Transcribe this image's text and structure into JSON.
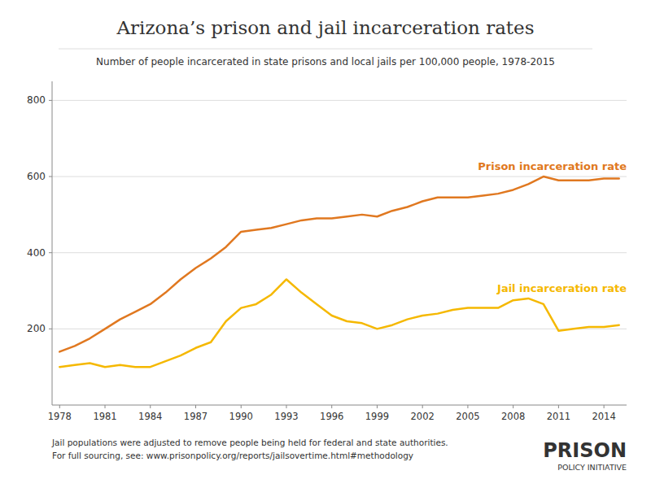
{
  "chart_data": {
    "type": "line",
    "title": "Arizona’s prison and jail incarceration rates",
    "subtitle": "Number of people incarcerated in state prisons and local jails per 100,000 people, 1978-2015",
    "annotations": [
      "Jail populations were adjusted to remove people being held for federal and state authorities.",
      "For full sourcing, see: www.prisonpolicy.org/reports/jailsovertime.html#methodology",
      "PRISON",
      "POLICY INITIATIVE"
    ],
    "x": [
      1978,
      1979,
      1980,
      1981,
      1982,
      1983,
      1984,
      1985,
      1986,
      1987,
      1988,
      1989,
      1990,
      1991,
      1992,
      1993,
      1994,
      1995,
      1996,
      1997,
      1998,
      1999,
      2000,
      2001,
      2002,
      2003,
      2004,
      2005,
      2006,
      2007,
      2008,
      2009,
      2010,
      2011,
      2012,
      2013,
      2014,
      2015
    ],
    "series": [
      {
        "name": "Prison incarceration rate",
        "color": "#e07820",
        "values": [
          140,
          155,
          175,
          200,
          225,
          245,
          265,
          295,
          330,
          360,
          385,
          415,
          455,
          460,
          465,
          475,
          485,
          490,
          490,
          495,
          500,
          495,
          510,
          520,
          535,
          545,
          545,
          545,
          550,
          555,
          565,
          580,
          600,
          590,
          590,
          590,
          595,
          595
        ]
      },
      {
        "name": "Jail incarceration rate",
        "color": "#f5b800",
        "values": [
          100,
          105,
          110,
          100,
          105,
          100,
          100,
          115,
          130,
          150,
          165,
          220,
          255,
          265,
          290,
          330,
          295,
          265,
          235,
          220,
          215,
          200,
          210,
          225,
          235,
          240,
          250,
          255,
          255,
          255,
          275,
          280,
          265,
          195,
          200,
          205,
          205,
          210
        ]
      }
    ],
    "xlim": [
      1977.5,
      2015.5
    ],
    "xticks": [
      1978,
      1981,
      1984,
      1987,
      1990,
      1993,
      1996,
      1999,
      2002,
      2005,
      2008,
      2011,
      2014
    ],
    "ylim": [
      0,
      850
    ],
    "yticks": [
      200,
      400,
      600,
      800
    ],
    "grid": true
  }
}
